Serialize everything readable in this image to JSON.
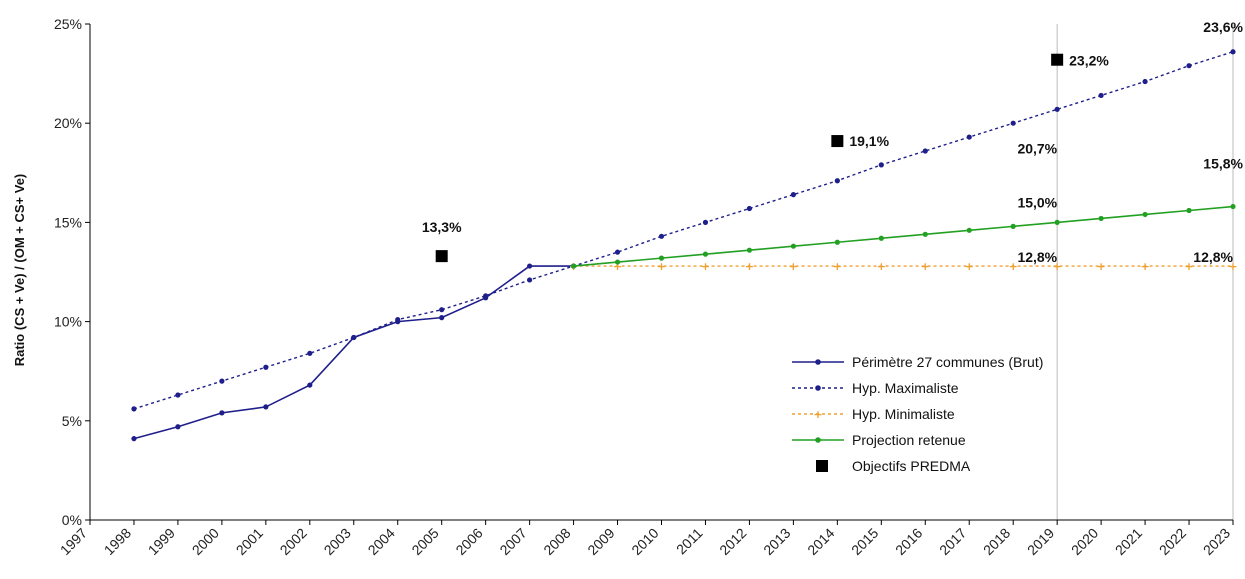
{
  "chart_data": {
    "type": "line",
    "ylabel": "Ratio (CS + Ve) / (OM + CS+ Ve)",
    "xlabel": "",
    "ylim": [
      0,
      25
    ],
    "yticks": [
      0,
      5,
      10,
      15,
      20,
      25
    ],
    "ytick_labels": [
      "0%",
      "5%",
      "10%",
      "15%",
      "20%",
      "25%"
    ],
    "xlim": [
      1997,
      2023
    ],
    "xtick_labels": [
      "1997",
      "1998",
      "1999",
      "2000",
      "2001",
      "2002",
      "2003",
      "2004",
      "2005",
      "2006",
      "2007",
      "2008",
      "2009",
      "2010",
      "2011",
      "2012",
      "2013",
      "2014",
      "2015",
      "2016",
      "2017",
      "2018",
      "2019",
      "2020",
      "2021",
      "2022",
      "2023"
    ],
    "legend_position": "bottom-right",
    "grid": false,
    "series": [
      {
        "name": "Périmètre 27 communes (Brut)",
        "style": "solid",
        "color": "#1f1f8c",
        "x": [
          1998,
          1999,
          2000,
          2001,
          2002,
          2003,
          2004,
          2005,
          2006,
          2007,
          2008
        ],
        "values": [
          4.1,
          4.7,
          5.4,
          5.7,
          6.8,
          9.2,
          10.0,
          10.2,
          11.2,
          12.8,
          12.8
        ]
      },
      {
        "name": "Hyp. Maximaliste",
        "style": "dotted",
        "color": "#1f1f8c",
        "x": [
          1998,
          1999,
          2000,
          2001,
          2002,
          2003,
          2004,
          2005,
          2006,
          2007,
          2008,
          2009,
          2010,
          2011,
          2012,
          2013,
          2014,
          2015,
          2016,
          2017,
          2018,
          2019,
          2020,
          2021,
          2022,
          2023
        ],
        "values": [
          5.6,
          6.3,
          7.0,
          7.7,
          8.4,
          9.2,
          10.1,
          10.6,
          11.3,
          12.1,
          12.8,
          13.5,
          14.3,
          15.0,
          15.7,
          16.4,
          17.1,
          17.9,
          18.6,
          19.3,
          20.0,
          20.7,
          21.4,
          22.1,
          22.9,
          23.6
        ]
      },
      {
        "name": "Hyp. Minimaliste",
        "style": "dotted",
        "color": "#f0a030",
        "x": [
          2008,
          2009,
          2010,
          2011,
          2012,
          2013,
          2014,
          2015,
          2016,
          2017,
          2018,
          2019,
          2020,
          2021,
          2022,
          2023
        ],
        "values": [
          12.8,
          12.8,
          12.8,
          12.8,
          12.8,
          12.8,
          12.8,
          12.8,
          12.8,
          12.8,
          12.8,
          12.8,
          12.8,
          12.8,
          12.8,
          12.8
        ]
      },
      {
        "name": "Projection retenue",
        "style": "solid",
        "color": "#22a022",
        "x": [
          2008,
          2009,
          2010,
          2011,
          2012,
          2013,
          2014,
          2015,
          2016,
          2017,
          2018,
          2019,
          2020,
          2021,
          2022,
          2023
        ],
        "values": [
          12.8,
          13.0,
          13.2,
          13.4,
          13.6,
          13.8,
          14.0,
          14.2,
          14.4,
          14.6,
          14.8,
          15.0,
          15.2,
          15.4,
          15.6,
          15.8
        ]
      },
      {
        "name": "Objectifs PREDMA",
        "style": "marker-only",
        "color": "#000000",
        "x": [
          2005,
          2014,
          2019
        ],
        "values": [
          13.3,
          19.1,
          23.2
        ]
      }
    ],
    "annotations": [
      {
        "text": "13,3%",
        "x": 2005,
        "y": 13.3
      },
      {
        "text": "19,1%",
        "x": 2014,
        "y": 19.1
      },
      {
        "text": "23,2%",
        "x": 2019,
        "y": 23.2
      },
      {
        "text": "23,6%",
        "x": 2023,
        "y": 23.6
      },
      {
        "text": "20,7%",
        "x": 2019,
        "y": 20.7
      },
      {
        "text": "15,8%",
        "x": 2023,
        "y": 15.8
      },
      {
        "text": "15,0%",
        "x": 2019,
        "y": 15.0
      },
      {
        "text": "12,8%",
        "x": 2019,
        "y": 12.8
      },
      {
        "text": "12,8%",
        "x": 2023,
        "y": 12.8
      }
    ],
    "reference_lines_x": [
      2019,
      2023
    ]
  }
}
